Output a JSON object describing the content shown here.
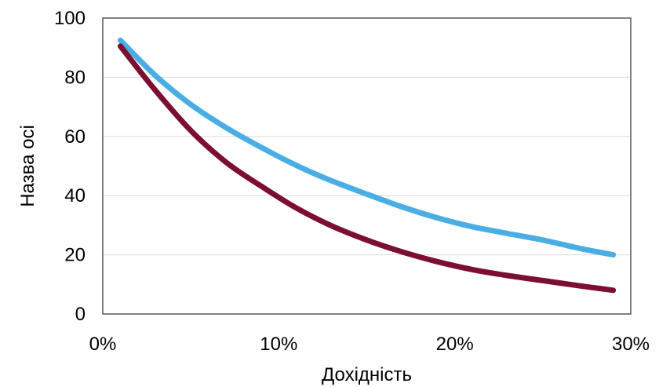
{
  "chart_data": {
    "type": "line",
    "title": "",
    "xlabel": "Дохідність",
    "ylabel": "Назва осі",
    "xlim": [
      0,
      0.3
    ],
    "ylim": [
      0,
      100
    ],
    "x_ticks": [
      0,
      0.1,
      0.2,
      0.3
    ],
    "x_tick_labels": [
      "0%",
      "10%",
      "20%",
      "30%"
    ],
    "y_ticks": [
      0,
      20,
      40,
      60,
      80,
      100
    ],
    "y_tick_labels": [
      "0",
      "20",
      "40",
      "60",
      "80",
      "100"
    ],
    "grid": "horizontal",
    "legend": "none",
    "x": [
      0.01,
      0.03,
      0.05,
      0.07,
      0.09,
      0.11,
      0.13,
      0.15,
      0.17,
      0.19,
      0.21,
      0.23,
      0.25,
      0.27,
      0.29
    ],
    "series": [
      {
        "color": "#4aaee4",
        "values": [
          92.5,
          80.5,
          70.8,
          63.0,
          56.3,
          50.2,
          45.0,
          40.5,
          36.2,
          32.5,
          29.5,
          27.2,
          25.0,
          22.3,
          20.0
        ]
      },
      {
        "color": "#7b0f30",
        "values": [
          90.5,
          75.5,
          62.0,
          51.3,
          43.2,
          35.8,
          29.8,
          25.0,
          21.0,
          17.7,
          15.0,
          13.0,
          11.3,
          9.6,
          8.0
        ]
      }
    ]
  }
}
